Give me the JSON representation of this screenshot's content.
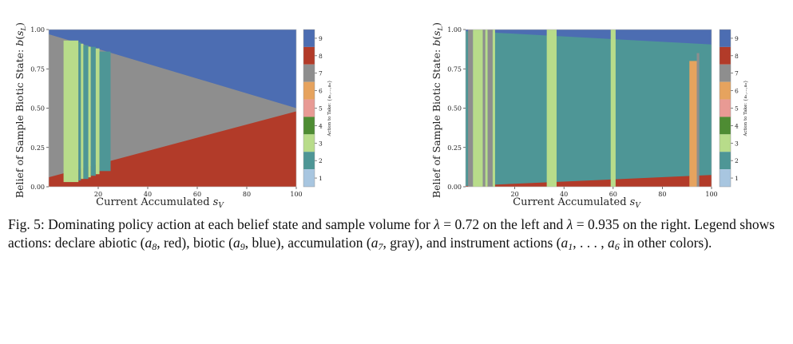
{
  "figure": {
    "number_label": "Fig. 5:",
    "caption": {
      "intro": "Dominating policy action at each belief state and sample volume for",
      "lambda_symbol": "λ",
      "lambda_left": "0.72",
      "mid1": "on the left and",
      "lambda_right": "0.935",
      "mid2": "on the right. Legend shows actions: declare abiotic (",
      "a8": "a",
      "a8_sub": "8",
      "mid3": ", red), biotic (",
      "a9": "a",
      "a9_sub": "9",
      "mid4": ", blue), accumulation (",
      "a7": "a",
      "a7_sub": "7",
      "mid5": ", gray), and instrument actions (",
      "a1": "a",
      "a1_sub": "1",
      "ellipsis": ", . . . , ",
      "a6": "a",
      "a6_sub": "6",
      "tail": " in other colors)."
    }
  },
  "chart_data": [
    {
      "type": "heatmap",
      "panel": "left",
      "lambda": 0.72,
      "xlabel": "Current Accumulated s_V",
      "ylabel": "Belief of Sample Biotic State: b(s_L)",
      "xlim": [
        0,
        100
      ],
      "ylim": [
        0,
        1
      ],
      "xticks": [
        20,
        40,
        60,
        80,
        100
      ],
      "yticks": [
        "0.00",
        "0.25",
        "0.50",
        "0.75",
        "1.00"
      ],
      "regions": [
        {
          "action": 9,
          "name": "biotic",
          "color": "#4c6db2"
        },
        {
          "action": 8,
          "name": "abiotic",
          "color": "#b23b29"
        },
        {
          "action": 7,
          "name": "accumulation",
          "color": "#8e8e8e"
        }
      ],
      "boundaries": {
        "abiotic_upper": {
          "x": [
            0,
            100
          ],
          "b": [
            0.06,
            0.48
          ]
        },
        "biotic_lower": {
          "x": [
            0,
            100
          ],
          "b": [
            0.97,
            0.5
          ]
        }
      },
      "bands": [
        {
          "action": 3,
          "x0": 6,
          "x1": 12,
          "b0": 0.03,
          "b1": 0.93
        },
        {
          "action": 2,
          "x0": 12,
          "x1": 13,
          "b0": 0.04,
          "b1": 0.92
        },
        {
          "action": 3,
          "x0": 13,
          "x1": 14,
          "b0": 0.05,
          "b1": 0.91
        },
        {
          "action": 2,
          "x0": 14,
          "x1": 16,
          "b0": 0.05,
          "b1": 0.9
        },
        {
          "action": 3,
          "x0": 16,
          "x1": 17,
          "b0": 0.06,
          "b1": 0.89
        },
        {
          "action": 2,
          "x0": 17,
          "x1": 19,
          "b0": 0.07,
          "b1": 0.89
        },
        {
          "action": 3,
          "x0": 19,
          "x1": 20.5,
          "b0": 0.08,
          "b1": 0.88
        },
        {
          "action": 2,
          "x0": 20.5,
          "x1": 25,
          "b0": 0.1,
          "b1": 0.86
        }
      ]
    },
    {
      "type": "heatmap",
      "panel": "right",
      "lambda": 0.935,
      "xlabel": "Current Accumulated s_V",
      "ylabel": "Belief of Sample Biotic State: b(s_L)",
      "xlim": [
        0,
        100
      ],
      "ylim": [
        0,
        1
      ],
      "xticks": [
        20,
        40,
        60,
        80,
        100
      ],
      "yticks": [
        "0.00",
        "0.25",
        "0.50",
        "0.75",
        "1.00"
      ],
      "regions": [
        {
          "action": 9,
          "name": "biotic",
          "color": "#4c6db2"
        },
        {
          "action": 8,
          "name": "abiotic",
          "color": "#b23b29"
        },
        {
          "action": 2,
          "name": "instrument",
          "color": "#4e9696"
        }
      ],
      "boundaries": {
        "abiotic_upper": {
          "x": [
            0,
            100
          ],
          "b": [
            0.005,
            0.075
          ]
        },
        "biotic_lower": {
          "x": [
            0,
            100
          ],
          "b": [
            0.99,
            0.905
          ]
        }
      },
      "bands": [
        {
          "action": 7,
          "x0": 1,
          "x1": 3,
          "b0": 0.0,
          "b1": 1.0
        },
        {
          "action": 3,
          "x0": 3,
          "x1": 7,
          "b0": 0.0,
          "b1": 1.0
        },
        {
          "action": 7,
          "x0": 7,
          "x1": 8,
          "b0": 0.0,
          "b1": 1.0
        },
        {
          "action": 3,
          "x0": 8,
          "x1": 9,
          "b0": 0.0,
          "b1": 1.0
        },
        {
          "action": 7,
          "x0": 9,
          "x1": 11,
          "b0": 0.0,
          "b1": 1.0
        },
        {
          "action": 3,
          "x0": 11,
          "x1": 12,
          "b0": 0.0,
          "b1": 1.0
        },
        {
          "action": 3,
          "x0": 33,
          "x1": 37,
          "b0": 0.0,
          "b1": 1.0
        },
        {
          "action": 3,
          "x0": 59,
          "x1": 61,
          "b0": 0.0,
          "b1": 1.0
        },
        {
          "action": 6,
          "x0": 91,
          "x1": 94,
          "b0": 0.0,
          "b1": 0.8
        },
        {
          "action": 7,
          "x0": 94,
          "x1": 95,
          "b0": 0.0,
          "b1": 0.85
        }
      ]
    }
  ],
  "legend": {
    "title": "Action to Take: {a₁,...,a₉}",
    "entries": [
      {
        "action": 9,
        "label": "9",
        "color": "#4c6db2"
      },
      {
        "action": 8,
        "label": "8",
        "color": "#b23b29"
      },
      {
        "action": 7,
        "label": "7",
        "color": "#8e8e8e"
      },
      {
        "action": 6,
        "label": "6",
        "color": "#e6a35e"
      },
      {
        "action": 5,
        "label": "5",
        "color": "#e89a94"
      },
      {
        "action": 4,
        "label": "4",
        "color": "#4e8c33"
      },
      {
        "action": 3,
        "label": "3",
        "color": "#b8dc8a"
      },
      {
        "action": 2,
        "label": "2",
        "color": "#4e9696"
      },
      {
        "action": 1,
        "label": "1",
        "color": "#a8c6e0"
      }
    ]
  },
  "labels": {
    "xlabel_main": "Current Accumulated ",
    "xlabel_var": "s",
    "xlabel_sub": "V",
    "ylabel_main": "Belief of Sample Biotic State: ",
    "ylabel_b": "b",
    "ylabel_var": "s",
    "ylabel_sub": "L",
    "legend_title": "Action to Take: {a₁,...,a₉}"
  }
}
